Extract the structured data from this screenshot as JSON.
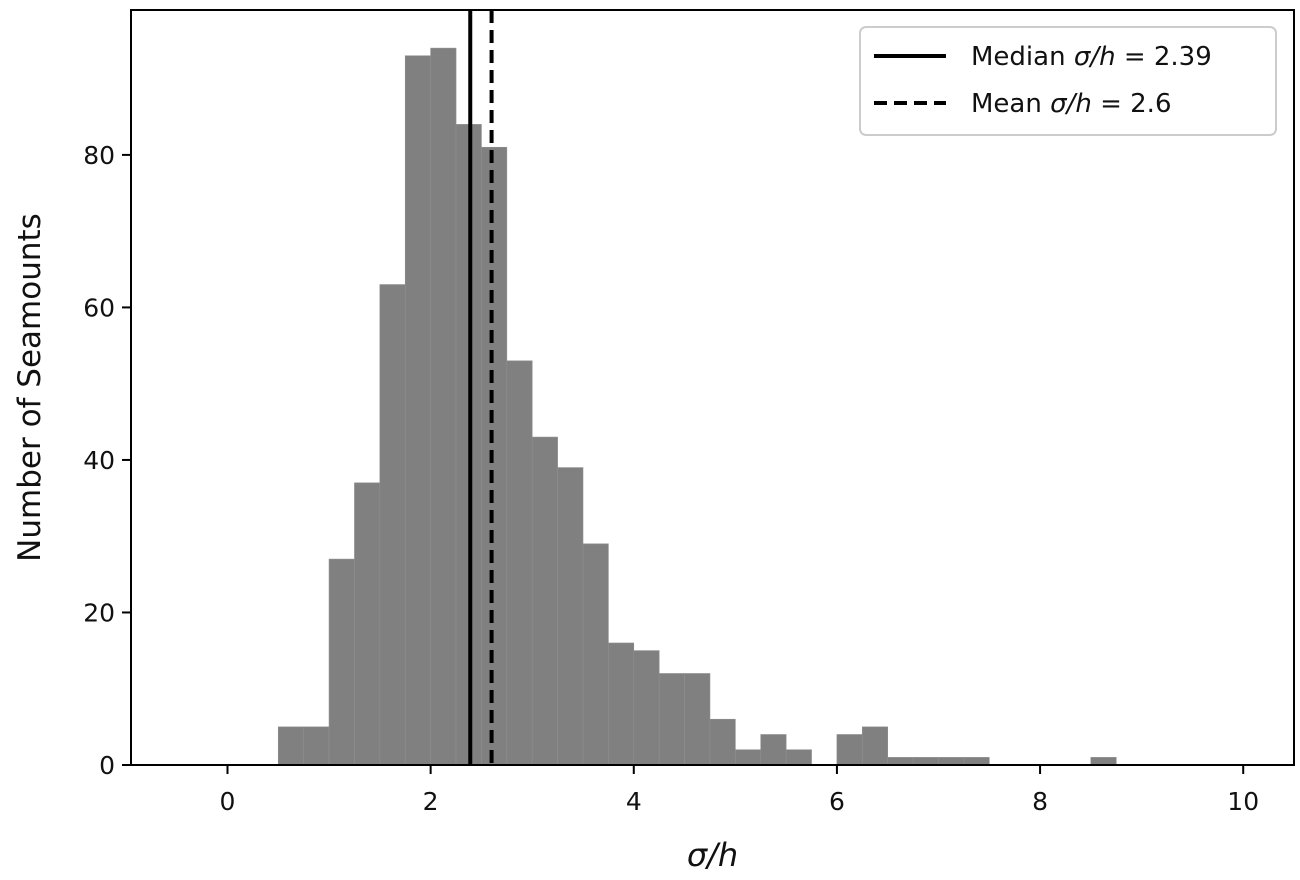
{
  "chart_data": {
    "type": "bar",
    "subtype": "histogram",
    "xlabel": "σ/h",
    "ylabel": "Number of Seamounts",
    "xlim": [
      -0.95,
      10.5
    ],
    "ylim": [
      0,
      99
    ],
    "xticks": [
      0,
      2,
      4,
      6,
      8,
      10
    ],
    "yticks": [
      0,
      20,
      40,
      60,
      80
    ],
    "bar_color": "#808080",
    "bin_width": 0.25,
    "bins": [
      {
        "start": 0.5,
        "value": 5
      },
      {
        "start": 0.75,
        "value": 5
      },
      {
        "start": 1.0,
        "value": 27
      },
      {
        "start": 1.25,
        "value": 37
      },
      {
        "start": 1.5,
        "value": 63
      },
      {
        "start": 1.75,
        "value": 93
      },
      {
        "start": 2.0,
        "value": 94
      },
      {
        "start": 2.25,
        "value": 84
      },
      {
        "start": 2.5,
        "value": 81
      },
      {
        "start": 2.75,
        "value": 53
      },
      {
        "start": 3.0,
        "value": 43
      },
      {
        "start": 3.25,
        "value": 39
      },
      {
        "start": 3.5,
        "value": 29
      },
      {
        "start": 3.75,
        "value": 16
      },
      {
        "start": 4.0,
        "value": 15
      },
      {
        "start": 4.25,
        "value": 12
      },
      {
        "start": 4.5,
        "value": 12
      },
      {
        "start": 4.75,
        "value": 6
      },
      {
        "start": 5.0,
        "value": 2
      },
      {
        "start": 5.25,
        "value": 4
      },
      {
        "start": 5.5,
        "value": 2
      },
      {
        "start": 5.75,
        "value": 0
      },
      {
        "start": 6.0,
        "value": 4
      },
      {
        "start": 6.25,
        "value": 5
      },
      {
        "start": 6.5,
        "value": 1
      },
      {
        "start": 6.75,
        "value": 1
      },
      {
        "start": 7.0,
        "value": 1
      },
      {
        "start": 7.25,
        "value": 1
      },
      {
        "start": 7.5,
        "value": 0
      },
      {
        "start": 7.75,
        "value": 0
      },
      {
        "start": 8.0,
        "value": 0
      },
      {
        "start": 8.25,
        "value": 0
      },
      {
        "start": 8.5,
        "value": 1
      }
    ],
    "reference_lines": [
      {
        "name": "Median",
        "x": 2.39,
        "style": "solid",
        "label_prefix": "Median ",
        "label_suffix": " = 2.39"
      },
      {
        "name": "Mean",
        "x": 2.6,
        "style": "dashed",
        "label_prefix": "Mean ",
        "label_suffix": " = 2.6"
      }
    ],
    "legend_symbol": "σ/h",
    "legend_position": "top-right",
    "grid": false
  }
}
